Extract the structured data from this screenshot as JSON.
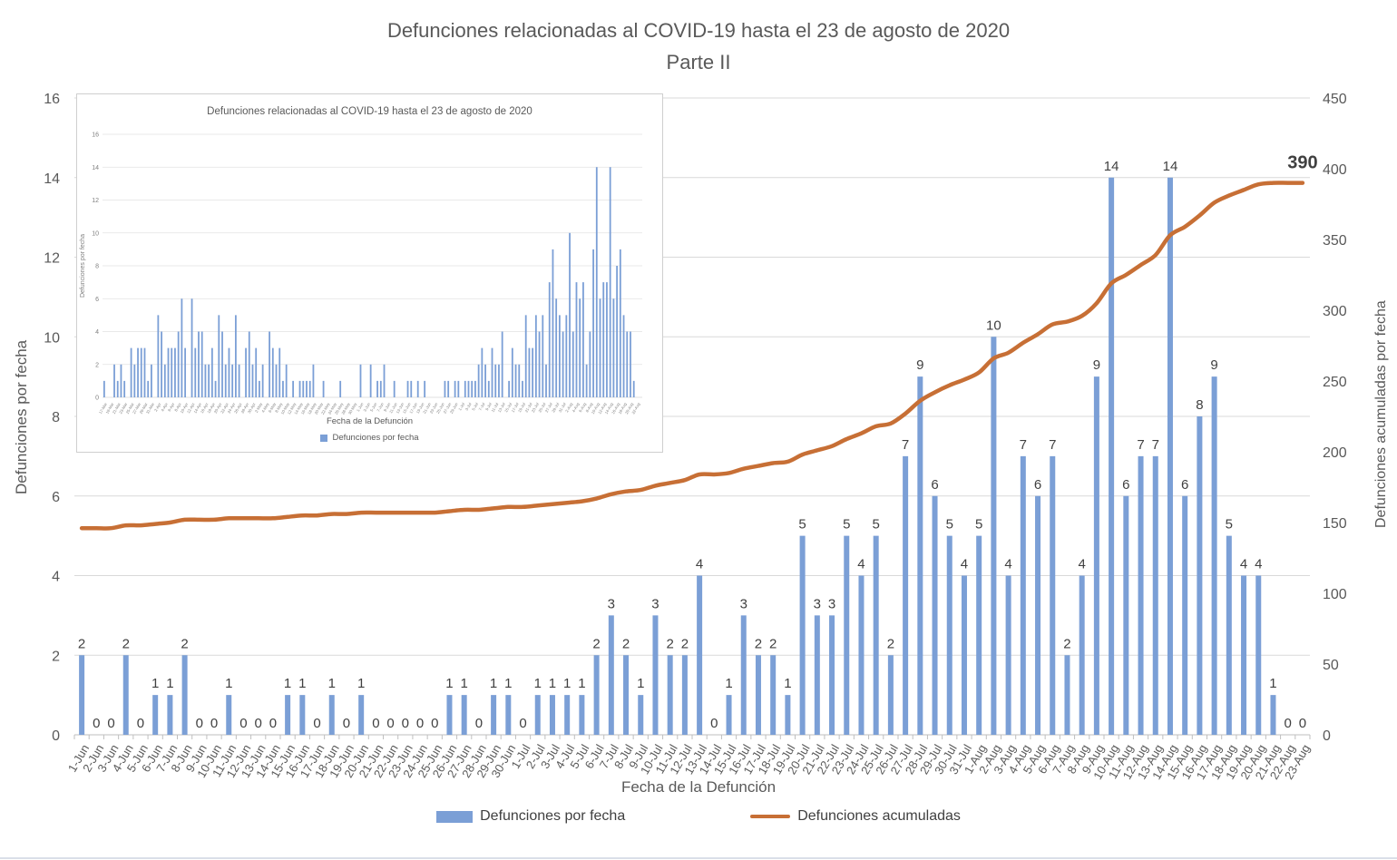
{
  "title": {
    "line1": "Defunciones relacionadas al COVID-19 hasta el 23 de agosto de 2020",
    "line2": "Parte II"
  },
  "colors": {
    "bar": "#7B9FD6",
    "line": "#C76F35",
    "grid": "#D9D9D9",
    "axis": "#BFBFBF",
    "text_dark": "#404040",
    "text_gray": "#595959",
    "inset_text": "#7F7F7F"
  },
  "chart_data": [
    {
      "id": "main",
      "type": "bar",
      "title": "Defunciones relacionadas al COVID-19 hasta el 23 de agosto de 2020 Parte II",
      "xlabel": "Fecha de la Defunción",
      "ylabel_left": "Defunciones por fecha",
      "ylabel_right": "Defunciones acumuladas por fecha",
      "ylim_left": [
        0,
        16
      ],
      "ytick_left": 2,
      "ylim_right": [
        0,
        450
      ],
      "ytick_right": 50,
      "grid": true,
      "bar_labels": true,
      "legend_position": "bottom",
      "categories": [
        "1-Jun",
        "2-Jun",
        "3-Jun",
        "4-Jun",
        "5-Jun",
        "6-Jun",
        "7-Jun",
        "8-Jun",
        "9-Jun",
        "10-Jun",
        "11-Jun",
        "12-Jun",
        "13-Jun",
        "14-Jun",
        "15-Jun",
        "16-Jun",
        "17-Jun",
        "18-Jun",
        "19-Jun",
        "20-Jun",
        "21-Jun",
        "22-Jun",
        "23-Jun",
        "24-Jun",
        "25-Jun",
        "26-Jun",
        "27-Jun",
        "28-Jun",
        "29-Jun",
        "30-Jun",
        "1-Jul",
        "2-Jul",
        "3-Jul",
        "4-Jul",
        "5-Jul",
        "6-Jul",
        "7-Jul",
        "8-Jul",
        "9-Jul",
        "10-Jul",
        "11-Jul",
        "12-Jul",
        "13-Jul",
        "14-Jul",
        "15-Jul",
        "16-Jul",
        "17-Jul",
        "18-Jul",
        "19-Jul",
        "20-Jul",
        "21-Jul",
        "22-Jul",
        "23-Jul",
        "24-Jul",
        "25-Jul",
        "26-Jul",
        "27-Jul",
        "28-Jul",
        "29-Jul",
        "30-Jul",
        "31-Jul",
        "1-Aug",
        "2-Aug",
        "3-Aug",
        "4-Aug",
        "5-Aug",
        "6-Aug",
        "7-Aug",
        "8-Aug",
        "9-Aug",
        "10-Aug",
        "11-Aug",
        "12-Aug",
        "13-Aug",
        "14-Aug",
        "15-Aug",
        "16-Aug",
        "17-Aug",
        "18-Aug",
        "19-Aug",
        "20-Aug",
        "21-Aug",
        "22-Aug",
        "23-Aug"
      ],
      "series": [
        {
          "name": "Defunciones por fecha",
          "type": "bar",
          "axis": "left",
          "values": [
            2,
            0,
            0,
            2,
            0,
            1,
            1,
            2,
            0,
            0,
            1,
            0,
            0,
            0,
            1,
            1,
            0,
            1,
            0,
            1,
            0,
            0,
            0,
            0,
            0,
            1,
            1,
            0,
            1,
            1,
            0,
            1,
            1,
            1,
            1,
            2,
            3,
            2,
            1,
            3,
            2,
            2,
            4,
            0,
            1,
            3,
            2,
            2,
            1,
            5,
            3,
            3,
            5,
            4,
            5,
            2,
            7,
            9,
            6,
            5,
            4,
            5,
            10,
            4,
            7,
            6,
            7,
            2,
            4,
            9,
            14,
            6,
            7,
            7,
            14,
            6,
            8,
            9,
            5,
            4,
            4,
            1,
            0,
            0
          ]
        },
        {
          "name": "Defunciones acumuladas",
          "type": "line",
          "axis": "right",
          "end_label": "390",
          "values": [
            146,
            146,
            146,
            148,
            148,
            149,
            150,
            152,
            152,
            152,
            153,
            153,
            153,
            153,
            154,
            155,
            155,
            156,
            156,
            157,
            157,
            157,
            157,
            157,
            157,
            158,
            159,
            159,
            160,
            161,
            161,
            162,
            163,
            164,
            165,
            167,
            170,
            172,
            173,
            176,
            178,
            180,
            184,
            184,
            185,
            188,
            190,
            192,
            193,
            198,
            201,
            204,
            209,
            213,
            218,
            220,
            227,
            236,
            242,
            247,
            251,
            256,
            266,
            270,
            277,
            283,
            290,
            292,
            296,
            305,
            319,
            325,
            332,
            339,
            353,
            359,
            367,
            376,
            381,
            385,
            389,
            390,
            390,
            390
          ]
        }
      ]
    },
    {
      "id": "inset",
      "type": "bar",
      "title": "Defunciones relacionadas al COVID-19 hasta el 23 de agosto de 2020",
      "xlabel": "Fecha de la Defunción",
      "ylabel": "Defunciones por fecha",
      "ylim": [
        0,
        16
      ],
      "ytick": 2,
      "grid": true,
      "legend_position": "bottom",
      "categories": [
        "17-Mar",
        "18-Mar",
        "19-Mar",
        "20-Mar",
        "21-Mar",
        "22-Mar",
        "23-Mar",
        "24-Mar",
        "25-Mar",
        "26-Mar",
        "27-Mar",
        "28-Mar",
        "29-Mar",
        "30-Mar",
        "31-Mar",
        "1-Apr",
        "2-Apr",
        "3-Apr",
        "4-Apr",
        "5-Apr",
        "6-Apr",
        "7-Apr",
        "8-Apr",
        "9-Apr",
        "10-Apr",
        "11-Apr",
        "12-Apr",
        "13-Apr",
        "14-Apr",
        "15-Apr",
        "16-Apr",
        "17-Apr",
        "18-Apr",
        "19-Apr",
        "20-Apr",
        "21-Apr",
        "22-Apr",
        "23-Apr",
        "24-Apr",
        "25-Apr",
        "26-Apr",
        "27-Apr",
        "28-Apr",
        "29-Apr",
        "30-Apr",
        "1-May",
        "2-May",
        "3-May",
        "4-May",
        "5-May",
        "6-May",
        "7-May",
        "8-May",
        "9-May",
        "10-May",
        "11-May",
        "12-May",
        "13-May",
        "14-May",
        "15-May",
        "16-May",
        "17-May",
        "18-May",
        "19-May",
        "20-May",
        "21-May",
        "22-May",
        "23-May",
        "24-May",
        "25-May",
        "26-May",
        "27-May",
        "28-May",
        "29-May",
        "30-May",
        "31-May",
        "1-Jun",
        "2-Jun",
        "3-Jun",
        "4-Jun",
        "5-Jun",
        "6-Jun",
        "7-Jun",
        "8-Jun",
        "9-Jun",
        "10-Jun",
        "11-Jun",
        "12-Jun",
        "13-Jun",
        "14-Jun",
        "15-Jun",
        "16-Jun",
        "17-Jun",
        "18-Jun",
        "19-Jun",
        "20-Jun",
        "21-Jun",
        "22-Jun",
        "23-Jun",
        "24-Jun",
        "25-Jun",
        "26-Jun",
        "27-Jun",
        "28-Jun",
        "29-Jun",
        "30-Jun",
        "1-Jul",
        "2-Jul",
        "3-Jul",
        "4-Jul",
        "5-Jul",
        "6-Jul",
        "7-Jul",
        "8-Jul",
        "9-Jul",
        "10-Jul",
        "11-Jul",
        "12-Jul",
        "13-Jul",
        "14-Jul",
        "15-Jul",
        "16-Jul",
        "17-Jul",
        "18-Jul",
        "19-Jul",
        "20-Jul",
        "21-Jul",
        "22-Jul",
        "23-Jul",
        "24-Jul",
        "25-Jul",
        "26-Jul",
        "27-Jul",
        "28-Jul",
        "29-Jul",
        "30-Jul",
        "31-Jul",
        "1-Aug",
        "2-Aug",
        "3-Aug",
        "4-Aug",
        "5-Aug",
        "6-Aug",
        "7-Aug",
        "8-Aug",
        "9-Aug",
        "10-Aug",
        "11-Aug",
        "12-Aug",
        "13-Aug",
        "14-Aug",
        "15-Aug",
        "16-Aug",
        "17-Aug",
        "18-Aug",
        "19-Aug",
        "20-Aug",
        "21-Aug",
        "22-Aug",
        "23-Aug"
      ],
      "series": [
        {
          "name": "Defunciones por fecha",
          "type": "bar",
          "values": [
            1,
            0,
            0,
            2,
            1,
            2,
            1,
            0,
            3,
            2,
            3,
            3,
            3,
            1,
            2,
            0,
            5,
            4,
            2,
            3,
            3,
            3,
            4,
            6,
            3,
            0,
            6,
            3,
            4,
            4,
            2,
            2,
            3,
            1,
            5,
            4,
            2,
            3,
            2,
            5,
            2,
            0,
            3,
            4,
            2,
            3,
            1,
            2,
            0,
            4,
            3,
            2,
            3,
            1,
            2,
            0,
            1,
            0,
            1,
            1,
            1,
            1,
            2,
            0,
            0,
            1,
            0,
            0,
            0,
            0,
            1,
            0,
            0,
            0,
            0,
            0,
            2,
            0,
            0,
            2,
            0,
            1,
            1,
            2,
            0,
            0,
            1,
            0,
            0,
            0,
            1,
            1,
            0,
            1,
            0,
            1,
            0,
            0,
            0,
            0,
            0,
            1,
            1,
            0,
            1,
            1,
            0,
            1,
            1,
            1,
            1,
            2,
            3,
            2,
            1,
            3,
            2,
            2,
            4,
            0,
            1,
            3,
            2,
            2,
            1,
            5,
            3,
            3,
            5,
            4,
            5,
            2,
            7,
            9,
            6,
            5,
            4,
            5,
            10,
            4,
            7,
            6,
            7,
            2,
            4,
            9,
            14,
            6,
            7,
            7,
            14,
            6,
            8,
            9,
            5,
            4,
            4,
            1,
            0,
            0
          ]
        }
      ]
    }
  ]
}
